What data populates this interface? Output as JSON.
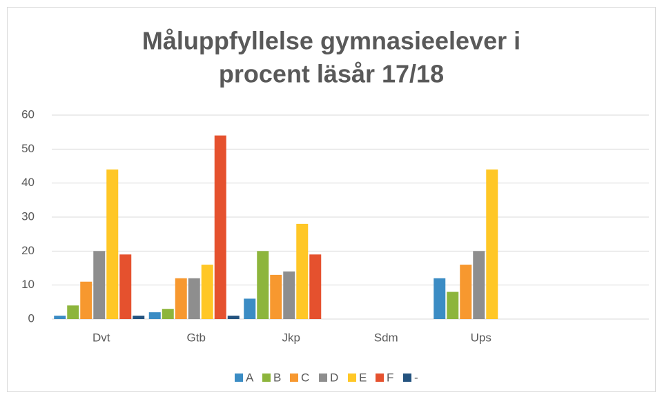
{
  "chart_data": {
    "type": "bar",
    "title": [
      "Måluppfyllelse gymnasieelever i",
      "procent läsår 17/18"
    ],
    "categories": [
      "Dvt",
      "Gtb",
      "Jkp",
      "Sdm",
      "Ups",
      null
    ],
    "series": [
      {
        "name": "A",
        "color": "#3b8cc4",
        "values": [
          1,
          2,
          6,
          0,
          12,
          null
        ]
      },
      {
        "name": "B",
        "color": "#8db53c",
        "values": [
          4,
          3,
          20,
          0,
          8,
          null
        ]
      },
      {
        "name": "C",
        "color": "#f7982f",
        "values": [
          11,
          12,
          13,
          0,
          16,
          null
        ]
      },
      {
        "name": "D",
        "color": "#8e8e8e",
        "values": [
          20,
          12,
          14,
          0,
          20,
          null
        ]
      },
      {
        "name": "E",
        "color": "#ffc726",
        "values": [
          44,
          16,
          28,
          0,
          44,
          null
        ]
      },
      {
        "name": "F",
        "color": "#e5512e",
        "values": [
          19,
          54,
          19,
          0,
          0,
          null
        ]
      },
      {
        "name": "-",
        "color": "#24537f",
        "values": [
          1,
          1,
          0,
          0,
          0,
          null
        ]
      }
    ],
    "ylim": [
      0,
      60
    ],
    "yticks": [
      0,
      10,
      20,
      30,
      40,
      50,
      60
    ],
    "grid": true,
    "legend": "bottom"
  }
}
